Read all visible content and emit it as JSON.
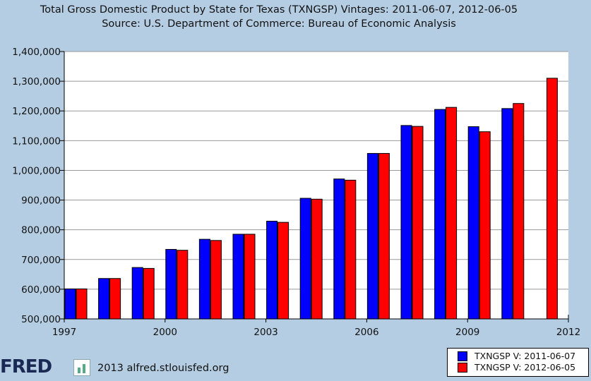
{
  "title": "Total Gross Domestic Product by State for Texas (TXNGSP) Vintages: 2011-06-07, 2012-06-05",
  "subtitle": "Source: U.S. Department of Commerce: Bureau of Economic Analysis",
  "footer": {
    "logo_text": "FRED",
    "credit": "2013 alfred.stlouisfed.org"
  },
  "colors": {
    "background": "#b5cde3",
    "plot_background": "#ffffff",
    "series_a": "#0000ff",
    "series_b": "#ff0000"
  },
  "chart_data": {
    "type": "bar",
    "title": "Total Gross Domestic Product by State for Texas (TXNGSP) Vintages: 2011-06-07, 2012-06-05",
    "xlabel": "",
    "ylabel": "",
    "ylim": [
      500000,
      1400000
    ],
    "y_ticks": [
      500000,
      600000,
      700000,
      800000,
      900000,
      1000000,
      1100000,
      1200000,
      1300000,
      1400000
    ],
    "y_tick_labels": [
      "500,000",
      "600,000",
      "700,000",
      "800,000",
      "900,000",
      "1,000,000",
      "1,100,000",
      "1,200,000",
      "1,300,000",
      "1,400,000"
    ],
    "x_tick_labels": [
      "1997",
      "2000",
      "2003",
      "2006",
      "2009",
      "2012"
    ],
    "categories": [
      "1997",
      "1998",
      "1999",
      "2000",
      "2001",
      "2002",
      "2003",
      "2004",
      "2005",
      "2006",
      "2007",
      "2008",
      "2009",
      "2010",
      "2011"
    ],
    "grid": true,
    "legend_position": "bottom-right",
    "series": [
      {
        "name": "TXNGSP V: 2011-06-07",
        "color": "#0000ff",
        "values": [
          601000,
          636000,
          673000,
          734000,
          768000,
          785000,
          829000,
          906000,
          971000,
          1057000,
          1151000,
          1205000,
          1147000,
          1208000,
          null
        ]
      },
      {
        "name": "TXNGSP V: 2012-06-05",
        "color": "#ff0000",
        "values": [
          601000,
          636000,
          670000,
          731000,
          764000,
          785000,
          825000,
          903000,
          967000,
          1057000,
          1148000,
          1212000,
          1130000,
          1225000,
          1310000
        ]
      }
    ]
  }
}
